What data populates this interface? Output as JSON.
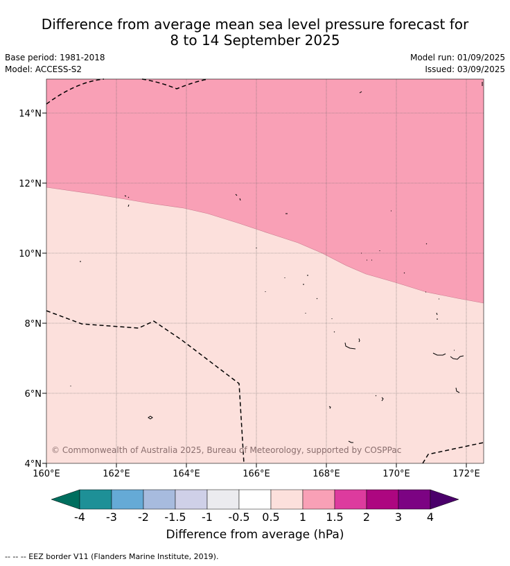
{
  "header": {
    "title_line1": "Difference from average mean sea level pressure forecast for",
    "title_line2": "8 to 14 September 2025",
    "base_period": "Base period: 1981-2018",
    "model": "Model: ACCESS-S2",
    "model_run": "Model run: 01/09/2025",
    "issued": "Issued: 03/09/2025"
  },
  "map": {
    "lat_labels": [
      "4°N",
      "6°N",
      "8°N",
      "10°N",
      "12°N",
      "14°N"
    ],
    "lon_labels": [
      "160°E",
      "162°E",
      "164°E",
      "166°E",
      "168°E",
      "170°E",
      "172°E"
    ],
    "copyright": "© Commonwealth of Australia 2025, Bureau of Meteorology, supported by COSPPac",
    "shading_colors": {
      "anomaly_1_to_1_5": "#f9a0b6",
      "anomaly_0_5_to_1": "#fce0dc"
    }
  },
  "colorbar": {
    "title": "Difference from average (hPa)",
    "tick_labels": [
      "-4",
      "-3",
      "-2",
      "-1.5",
      "-1",
      "-0.5",
      "0.5",
      "1",
      "1.5",
      "2",
      "3",
      "4"
    ],
    "low_extend_color": "#006e5e",
    "colors": [
      "#1e9097",
      "#65aad6",
      "#a7bbde",
      "#cfd0e8",
      "#ebebef",
      "#ffffff",
      "#fce0dc",
      "#f9a0b6",
      "#dd3b9e",
      "#ad0680",
      "#7c0383"
    ],
    "high_extend_color": "#4a006a"
  },
  "footnote": "-- -- -- EEZ border V11 (Flanders Marine Institute, 2019)."
}
